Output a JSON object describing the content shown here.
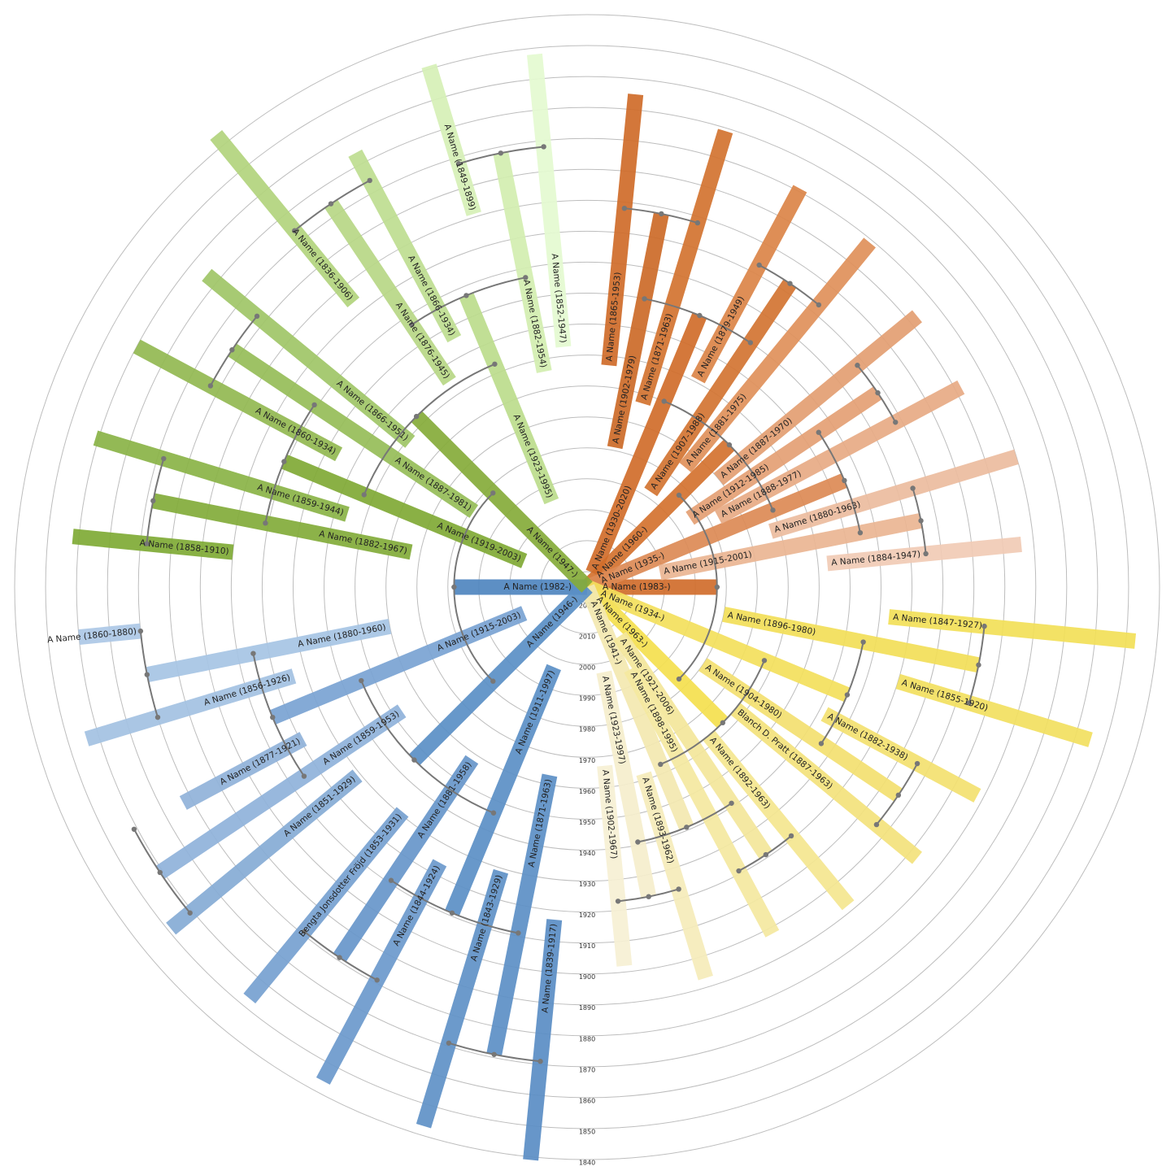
{
  "chart_data": {
    "type": "fan",
    "ylim": [
      2025,
      1840
    ],
    "yticks": [
      2020,
      2010,
      2000,
      1990,
      1980,
      1970,
      1960,
      1950,
      1940,
      1930,
      1920,
      1910,
      1900,
      1890,
      1880,
      1870,
      1860,
      1850,
      1840
    ],
    "grid": true,
    "connector_color": "#777777",
    "people": [
      {
        "name": "A Name (1983-)",
        "birth": 1983,
        "death": null,
        "color": "#d06c2b",
        "parents": [
          1,
          2
        ]
      },
      {
        "name": "A Name (1960-)",
        "birth": 1960,
        "death": null,
        "color": "#d4722f",
        "parents": [
          3,
          4
        ]
      },
      {
        "name": "A Name (1963-)",
        "birth": 1963,
        "death": null,
        "color": "#f4e04e",
        "parents": [
          5,
          6
        ]
      },
      {
        "name": "A Name (1930-2020)",
        "birth": 1930,
        "death": 2020,
        "color": "#d06c2a",
        "parents": [
          7,
          8
        ]
      },
      {
        "name": "A Name (1935-)",
        "birth": 1935,
        "death": null,
        "color": "#dc8a55",
        "parents": [
          9,
          10
        ]
      },
      {
        "name": "A Name (1934-)",
        "birth": 1934,
        "death": null,
        "color": "#f3df5c",
        "parents": [
          11,
          12
        ]
      },
      {
        "name": "A Name (1941-)",
        "birth": 1941,
        "death": null,
        "color": "#f3e8b0",
        "parents": [
          13,
          14
        ]
      },
      {
        "name": "A Name (1902-1979)",
        "birth": 1902,
        "death": 1979,
        "color": "#cc6a28",
        "parents": [
          15,
          16
        ]
      },
      {
        "name": "A Name (1907-1988)",
        "birth": 1907,
        "death": 1988,
        "color": "#d27432",
        "parents": [
          17,
          18
        ]
      },
      {
        "name": "A Name (1912-1985)",
        "birth": 1912,
        "death": 1985,
        "color": "#e4a074",
        "parents": [
          19,
          20
        ]
      },
      {
        "name": "A Name (1915-2001)",
        "birth": 1915,
        "death": 2001,
        "color": "#eab592",
        "parents": [
          21,
          22
        ]
      },
      {
        "name": "A Name (1896-1980)",
        "birth": 1896,
        "death": 1980,
        "color": "#f2de58",
        "parents": [
          23,
          24
        ]
      },
      {
        "name": "A Name (1904-1980)",
        "birth": 1904,
        "death": 1980,
        "color": "#f3e070",
        "parents": [
          25,
          26
        ]
      },
      {
        "name": "A Name (1921-2006)",
        "birth": 1921,
        "death": 2006,
        "color": "#f3e69a",
        "parents": [
          27,
          28
        ]
      },
      {
        "name": "A Name (1923-1997)",
        "birth": 1923,
        "death": 1997,
        "color": "#f5eecc",
        "parents": [
          29,
          30
        ]
      },
      {
        "name": "A Name (1865-1953)",
        "birth": 1865,
        "death": 1953,
        "color": "#cf6b29"
      },
      {
        "name": "A Name (1871-1963)",
        "birth": 1871,
        "death": 1963,
        "color": "#d37330"
      },
      {
        "name": "A Name (1879-1949)",
        "birth": 1879,
        "death": 1949,
        "color": "#db8448"
      },
      {
        "name": "A Name (1881-1975)",
        "birth": 1881,
        "death": 1975,
        "color": "#df905a"
      },
      {
        "name": "A Name (1887-1970)",
        "birth": 1887,
        "death": 1970,
        "color": "#e39e72"
      },
      {
        "name": "A Name (1888-1977)",
        "birth": 1888,
        "death": 1977,
        "color": "#e7aa84"
      },
      {
        "name": "A Name (1880-1963)",
        "birth": 1880,
        "death": 1963,
        "color": "#ecbc9e"
      },
      {
        "name": "A Name (1884-1947)",
        "birth": 1884,
        "death": 1947,
        "color": "#f1cbb5"
      },
      {
        "name": "A Name (1847-1927)",
        "birth": 1847,
        "death": 1927,
        "color": "#f2df58"
      },
      {
        "name": "A Name (1855-1920)",
        "birth": 1855,
        "death": 1920,
        "color": "#f2df60"
      },
      {
        "name": "A Name (1882-1938)",
        "birth": 1882,
        "death": 1938,
        "color": "#f3e170"
      },
      {
        "name": "Blanch D. Pratt (1887-1963)",
        "birth": 1887,
        "death": 1963,
        "color": "#f3e27c"
      },
      {
        "name": "A Name (1892-1963)",
        "birth": 1892,
        "death": 1963,
        "color": "#f4e68f"
      },
      {
        "name": "A Name (1898-1995)",
        "birth": 1898,
        "death": 1995,
        "color": "#f4e8a0"
      },
      {
        "name": "A Name (1893-1962)",
        "birth": 1893,
        "death": 1962,
        "color": "#f5ecba"
      },
      {
        "name": "A Name (1902-1967)",
        "birth": 1902,
        "death": 1967,
        "color": "#f6f0d4"
      },
      {
        "name": "A Name (1982-)",
        "birth": 1982,
        "death": null,
        "color": "#4f86bf",
        "parents": [
          32,
          33
        ]
      },
      {
        "name": "A Name (1946-)",
        "birth": 1946,
        "death": null,
        "color": "#5a8fc6",
        "parents": [
          34,
          35
        ]
      },
      {
        "name": "A Name (1947-)",
        "birth": 1947,
        "death": null,
        "color": "#86ab3a",
        "parents": [
          36,
          37
        ]
      },
      {
        "name": "A Name (1911-1997)",
        "birth": 1911,
        "death": 1997,
        "color": "#5b8fc6",
        "parents": [
          38,
          39
        ]
      },
      {
        "name": "A Name (1915-2003)",
        "birth": 1915,
        "death": 2003,
        "color": "#7aa3d2",
        "parents": [
          40,
          41
        ]
      },
      {
        "name": "A Name (1919-2003)",
        "birth": 1919,
        "death": 2003,
        "color": "#80a935",
        "parents": [
          42,
          43
        ]
      },
      {
        "name": "A Name (1923-1995)",
        "birth": 1923,
        "death": 1995,
        "color": "#bcdc8c",
        "parents": [
          44,
          45
        ]
      },
      {
        "name": "A Name (1871-1963)",
        "birth": 1871,
        "death": 1963,
        "color": "#5c8fc5",
        "parents": [
          46,
          47
        ]
      },
      {
        "name": "A Name (1881-1958)",
        "birth": 1881,
        "death": 1958,
        "color": "#6796ca",
        "parents": [
          48,
          49
        ]
      },
      {
        "name": "A Name (1859-1953)",
        "birth": 1859,
        "death": 1953,
        "color": "#8fb2da",
        "parents": [
          50,
          51
        ]
      },
      {
        "name": "A Name (1880-1960)",
        "birth": 1880,
        "death": 1960,
        "color": "#a6c4e4",
        "parents": [
          52,
          53
        ]
      },
      {
        "name": "A Name (1882-1967)",
        "birth": 1882,
        "death": 1967,
        "color": "#82ab39",
        "parents": [
          54,
          55
        ]
      },
      {
        "name": "A Name (1887-1981)",
        "birth": 1887,
        "death": 1981,
        "color": "#96bd58",
        "parents": [
          56,
          57
        ]
      },
      {
        "name": "A Name (1876-1945)",
        "birth": 1876,
        "death": 1945,
        "color": "#b7d786",
        "parents": [
          58,
          59
        ]
      },
      {
        "name": "A Name (1882-1954)",
        "birth": 1882,
        "death": 1954,
        "color": "#d3eeb0",
        "parents": [
          60,
          61
        ]
      },
      {
        "name": "A Name (1839-1917)",
        "birth": 1839,
        "death": 1917,
        "color": "#5a8dc4"
      },
      {
        "name": "A Name (1843-1929)",
        "birth": 1843,
        "death": 1929,
        "color": "#6091c7"
      },
      {
        "name": "A Name (1844-1924)",
        "birth": 1844,
        "death": 1924,
        "color": "#6b99cc"
      },
      {
        "name": "Bengta Jonsdotter Fröjd (1853-1931)",
        "birth": 1853,
        "death": 1931,
        "color": "#76a1d0"
      },
      {
        "name": "A Name (1851-1929)",
        "birth": 1851,
        "death": 1929,
        "color": "#86abd5"
      },
      {
        "name": "A Name (1877-1921)",
        "birth": 1877,
        "death": 1921,
        "color": "#90b2d9"
      },
      {
        "name": "A Name (1856-1926)",
        "birth": 1856,
        "death": 1926,
        "color": "#a3c1e2"
      },
      {
        "name": "A Name (1860-1880)",
        "birth": 1860,
        "death": 1880,
        "color": "#adc8e6"
      },
      {
        "name": "A Name (1858-1910)",
        "birth": 1858,
        "death": 1910,
        "color": "#7faa35"
      },
      {
        "name": "A Name (1859-1944)",
        "birth": 1859,
        "death": 1944,
        "color": "#8ab346"
      },
      {
        "name": "A Name (1860-1934)",
        "birth": 1860,
        "death": 1934,
        "color": "#92b951"
      },
      {
        "name": "A Name (1866-1951)",
        "birth": 1866,
        "death": 1951,
        "color": "#a0c567"
      },
      {
        "name": "A Name (1836-1906)",
        "birth": 1836,
        "death": 1906,
        "color": "#b2d47d"
      },
      {
        "name": "A Name (1866-1934)",
        "birth": 1866,
        "death": 1934,
        "color": "#bedd90"
      },
      {
        "name": "A Name (1849-1899)",
        "birth": 1849,
        "death": 1899,
        "color": "#d6f0b6"
      },
      {
        "name": "A Name (1852-1947)",
        "birth": 1852,
        "death": 1947,
        "color": "#e4fad0"
      }
    ]
  }
}
